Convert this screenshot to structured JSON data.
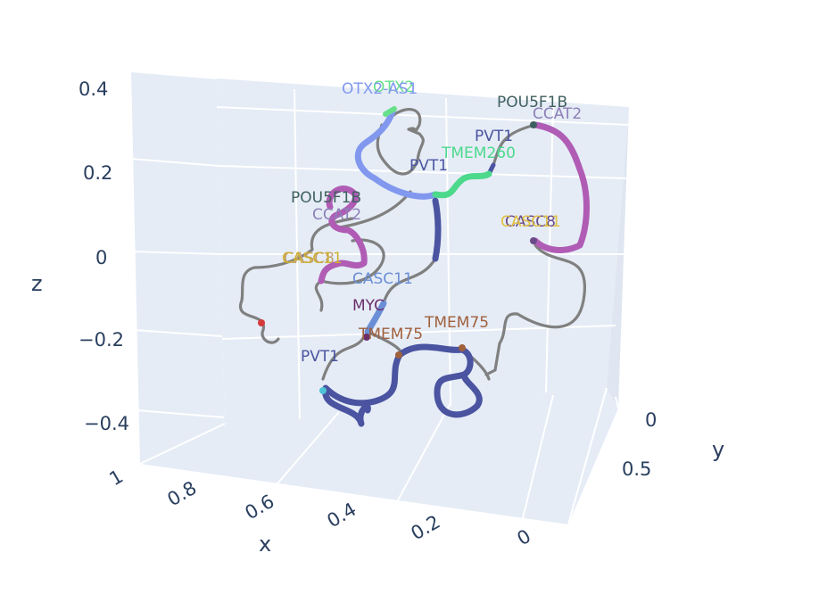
{
  "chart_data": {
    "type": "scatter3d",
    "title": "",
    "axes": {
      "x": {
        "title": "x",
        "ticks": [
          "1",
          "0.8",
          "0.6",
          "0.4",
          "0.2",
          "0"
        ]
      },
      "y": {
        "title": "y",
        "ticks": [
          "0",
          "0.5"
        ]
      },
      "z": {
        "title": "z",
        "ticks": [
          "0.4",
          "0.2",
          "0",
          "−0.2",
          "−0.4"
        ]
      }
    },
    "grid": true,
    "legend": "none",
    "colors": {
      "backbone": "#808080",
      "scene_background": "#e5ecf6",
      "grid": "#ffffff",
      "tick_text": "#2a3f5f"
    },
    "gene_labels": [
      {
        "text": "OTX2",
        "color": "#66e08a"
      },
      {
        "text": "OTX2-AS1",
        "color": "#8198ee"
      },
      {
        "text": "POU5F1B",
        "color": "#3f5f5f"
      },
      {
        "text": "CCAT2",
        "color": "#8d7fb8"
      },
      {
        "text": "PVT1",
        "color": "#4a54a0"
      },
      {
        "text": "TMEM260",
        "color": "#4cd98c"
      },
      {
        "text": "PVT1",
        "color": "#4a54a0"
      },
      {
        "text": "CASC8",
        "color": "#6b4a8a"
      },
      {
        "text": "CASC11",
        "color": "#e0c040"
      },
      {
        "text": "POU5F1B",
        "color": "#3f5f5f"
      },
      {
        "text": "CCAT2",
        "color": "#8d7fb8"
      },
      {
        "text": "CASC8",
        "color": "#c0a070"
      },
      {
        "text": "CASC11",
        "color": "#d0b030"
      },
      {
        "text": "CASC11",
        "color": "#6b8fd6"
      },
      {
        "text": "MYC",
        "color": "#6b2f6b"
      },
      {
        "text": "TMEM75",
        "color": "#a0603c"
      },
      {
        "text": "TMEM75",
        "color": "#a0603c"
      },
      {
        "text": "PVT1",
        "color": "#4a54a0"
      }
    ]
  }
}
